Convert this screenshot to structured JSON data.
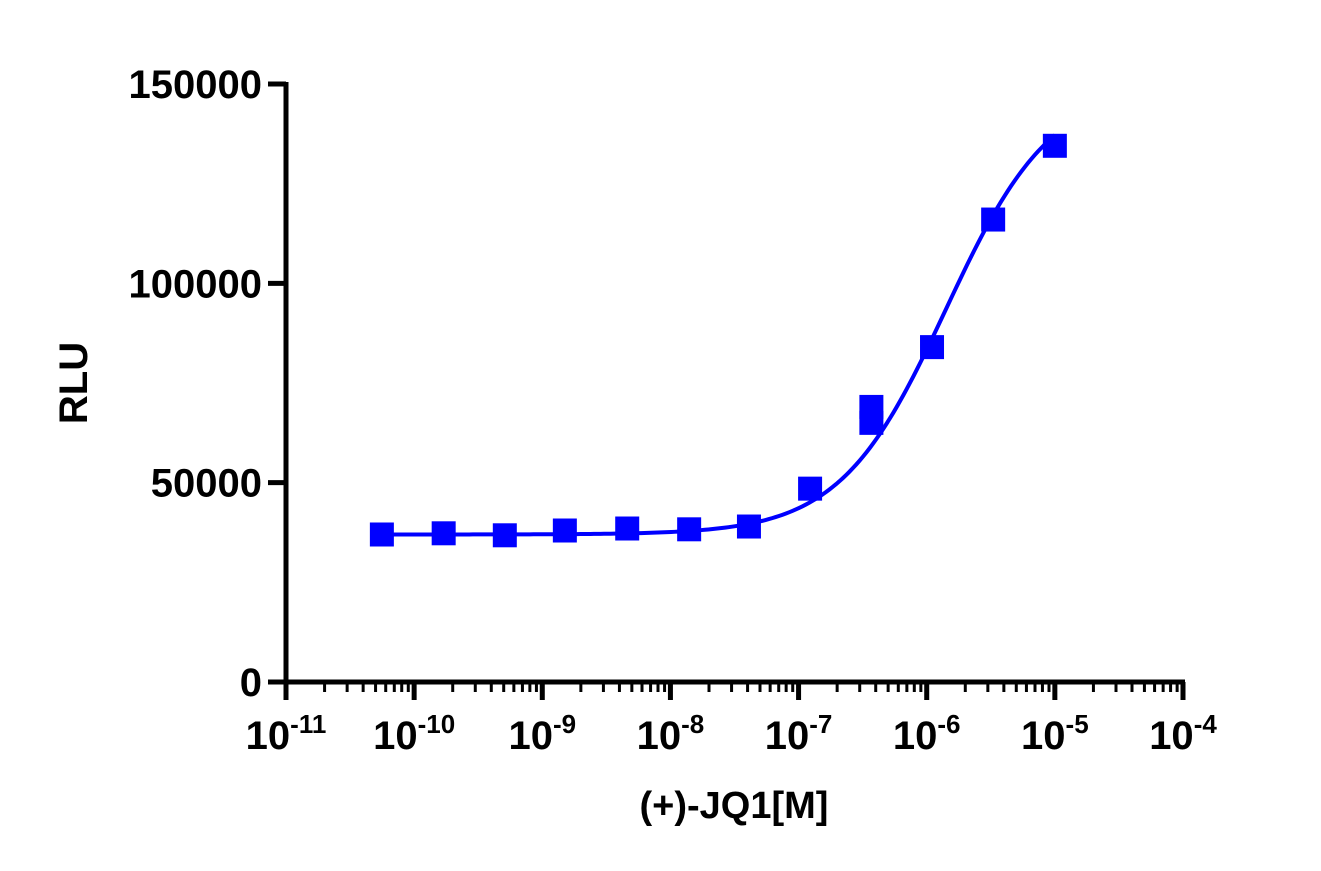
{
  "colors": {
    "series": "#0000ff",
    "axis": "#000000",
    "background": "#ffffff"
  },
  "chart_data": {
    "type": "scatter",
    "title": "",
    "xlabel": "(+)-JQ1[M]",
    "ylabel": "RLU",
    "xscale": "log",
    "xlim": [
      1e-11,
      0.0001
    ],
    "ylim": [
      0,
      150000
    ],
    "grid": false,
    "legend": "none",
    "x_tick_labels": [
      {
        "base": "10",
        "exp": "-11"
      },
      {
        "base": "10",
        "exp": "-10"
      },
      {
        "base": "10",
        "exp": "-9"
      },
      {
        "base": "10",
        "exp": "-8"
      },
      {
        "base": "10",
        "exp": "-7"
      },
      {
        "base": "10",
        "exp": "-6"
      },
      {
        "base": "10",
        "exp": "-5"
      },
      {
        "base": "10",
        "exp": "-4"
      }
    ],
    "y_tick_labels": [
      "0",
      "50000",
      "100000",
      "150000"
    ],
    "y_tick_values": [
      0,
      50000,
      100000,
      150000
    ],
    "series": [
      {
        "marker": "square",
        "fit_curve": "sigmoidal",
        "points": [
          {
            "x": 5.6e-11,
            "y": 37000
          },
          {
            "x": 1.7e-10,
            "y": 37300
          },
          {
            "x": 5.1e-10,
            "y": 36800
          },
          {
            "x": 1.5e-09,
            "y": 38000
          },
          {
            "x": 4.6e-09,
            "y": 38500
          },
          {
            "x": 1.4e-08,
            "y": 38300
          },
          {
            "x": 4.1e-08,
            "y": 39000
          },
          {
            "x": 1.23e-07,
            "y": 48500
          },
          {
            "x": 3.7e-07,
            "y": 65000
          },
          {
            "x": 3.7e-07,
            "y": 69000
          },
          {
            "x": 1.1e-06,
            "y": 84000
          },
          {
            "x": 3.3e-06,
            "y": 116000
          },
          {
            "x": 1e-05,
            "y": 134500
          }
        ],
        "fit": {
          "bottom": 37000,
          "top": 150000,
          "logEC50": -5.85,
          "hill": 1.05
        }
      }
    ]
  }
}
